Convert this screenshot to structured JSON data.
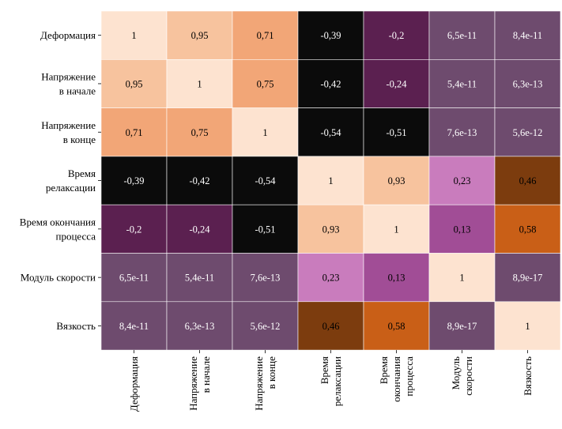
{
  "chart_data": {
    "type": "heatmap",
    "title": "",
    "xlabel": "",
    "ylabel": "",
    "row_labels": [
      [
        "Деформация"
      ],
      [
        "Напряжение",
        "в начале"
      ],
      [
        "Напряжение",
        "в конце"
      ],
      [
        "Время",
        "релаксации"
      ],
      [
        "Время окончания",
        "процесса"
      ],
      [
        "Модуль скорости"
      ],
      [
        "Вязкость"
      ]
    ],
    "col_labels": [
      [
        "Деформация"
      ],
      [
        "Напряжение",
        "в начале"
      ],
      [
        "Напряжение",
        "в конце"
      ],
      [
        "Время",
        "релаксации"
      ],
      [
        "Время",
        "окончания",
        "процесса"
      ],
      [
        "Модуль",
        "скорости"
      ],
      [
        "Вязкость"
      ]
    ],
    "values": [
      [
        1,
        0.95,
        0.71,
        -0.39,
        -0.2,
        6.5e-11,
        8.4e-11
      ],
      [
        0.95,
        1,
        0.75,
        -0.42,
        -0.24,
        5.4e-11,
        6.3e-13
      ],
      [
        0.71,
        0.75,
        1,
        -0.54,
        -0.51,
        7.6e-13,
        5.6e-12
      ],
      [
        -0.39,
        -0.42,
        -0.54,
        1,
        0.93,
        0.23,
        0.46
      ],
      [
        -0.2,
        -0.24,
        -0.51,
        0.93,
        1,
        0.13,
        0.58
      ],
      [
        6.5e-11,
        5.4e-11,
        7.6e-13,
        0.23,
        0.13,
        1,
        8.9e-17
      ],
      [
        8.4e-11,
        6.3e-13,
        5.6e-12,
        0.46,
        0.58,
        8.9e-17,
        1
      ]
    ],
    "cell_text": [
      [
        "1",
        "0,95",
        "0,71",
        "-0,39",
        "-0,2",
        "6,5e-11",
        "8,4e-11"
      ],
      [
        "0,95",
        "1",
        "0,75",
        "-0,42",
        "-0,24",
        "5,4e-11",
        "6,3e-13"
      ],
      [
        "0,71",
        "0,75",
        "1",
        "-0,54",
        "-0,51",
        "7,6e-13",
        "5,6e-12"
      ],
      [
        "-0,39",
        "-0,42",
        "-0,54",
        "1",
        "0,93",
        "0,23",
        "0,46"
      ],
      [
        "-0,2",
        "-0,24",
        "-0,51",
        "0,93",
        "1",
        "0,13",
        "0,58"
      ],
      [
        "6,5e-11",
        "5,4e-11",
        "7,6e-13",
        "0,23",
        "0,13",
        "1",
        "8,9e-17"
      ],
      [
        "8,4e-11",
        "6,3e-13",
        "5,6e-12",
        "0,46",
        "0,58",
        "8,9e-17",
        "1"
      ]
    ],
    "cell_colors": [
      [
        "#fde3d0",
        "#f7c39e",
        "#f2a677",
        "#0b0b0b",
        "#5b2050",
        "#6e4b6e",
        "#6e4b6e"
      ],
      [
        "#f7c39e",
        "#fde3d0",
        "#f2a677",
        "#0b0b0b",
        "#5b2050",
        "#6e4b6e",
        "#6e4b6e"
      ],
      [
        "#f2a677",
        "#f2a677",
        "#fde3d0",
        "#0b0b0b",
        "#0b0b0b",
        "#6e4b6e",
        "#6e4b6e"
      ],
      [
        "#0b0b0b",
        "#0b0b0b",
        "#0b0b0b",
        "#fde3d0",
        "#f7c39e",
        "#c97cbd",
        "#7c3c0e"
      ],
      [
        "#5b2050",
        "#5b2050",
        "#0b0b0b",
        "#f7c39e",
        "#fde3d0",
        "#a14d96",
        "#c95f17"
      ],
      [
        "#6e4b6e",
        "#6e4b6e",
        "#6e4b6e",
        "#c97cbd",
        "#a14d96",
        "#fde3d0",
        "#6e4b6e"
      ],
      [
        "#6e4b6e",
        "#6e4b6e",
        "#6e4b6e",
        "#7c3c0e",
        "#c95f17",
        "#6e4b6e",
        "#fde3d0"
      ]
    ],
    "text_colors": [
      [
        "#000000",
        "#000000",
        "#000000",
        "#ffffff",
        "#ffffff",
        "#ffffff",
        "#ffffff"
      ],
      [
        "#000000",
        "#000000",
        "#000000",
        "#ffffff",
        "#ffffff",
        "#ffffff",
        "#ffffff"
      ],
      [
        "#000000",
        "#000000",
        "#000000",
        "#ffffff",
        "#ffffff",
        "#ffffff",
        "#ffffff"
      ],
      [
        "#ffffff",
        "#ffffff",
        "#ffffff",
        "#000000",
        "#000000",
        "#000000",
        "#000000"
      ],
      [
        "#ffffff",
        "#ffffff",
        "#ffffff",
        "#000000",
        "#000000",
        "#000000",
        "#000000"
      ],
      [
        "#ffffff",
        "#ffffff",
        "#ffffff",
        "#000000",
        "#000000",
        "#000000",
        "#ffffff"
      ],
      [
        "#ffffff",
        "#ffffff",
        "#ffffff",
        "#000000",
        "#000000",
        "#ffffff",
        "#000000"
      ]
    ],
    "grid": false,
    "colorbar": false
  }
}
